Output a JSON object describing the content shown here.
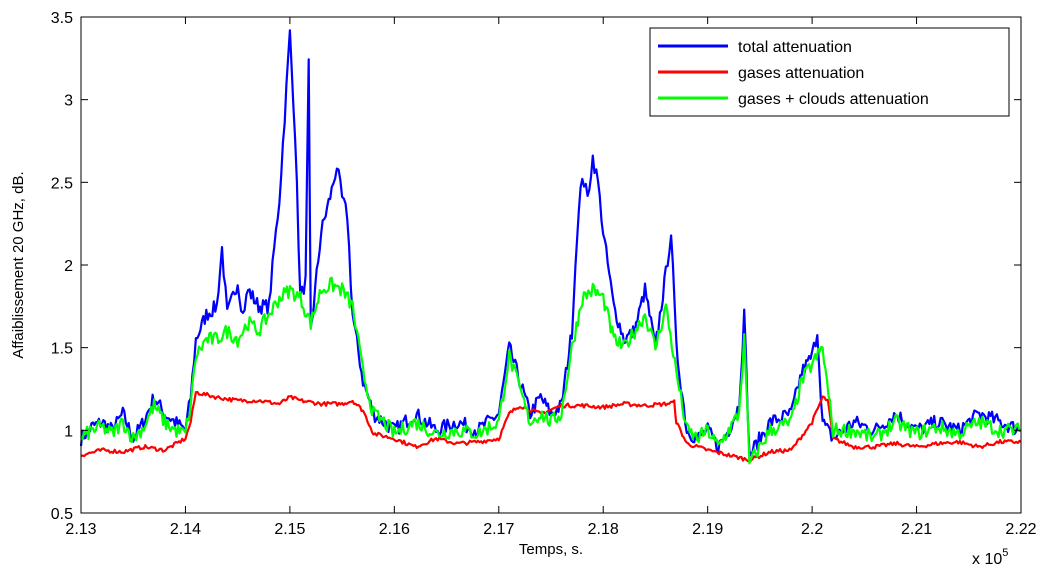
{
  "chart_data": {
    "type": "line",
    "title": "",
    "xlabel": "Temps, s.",
    "ylabel": "Affaiblissement 20 GHz, dB.",
    "x_exponent_label": "x 10",
    "x_exponent_power": "5",
    "xlim": [
      2.13,
      2.22
    ],
    "ylim": [
      0.5,
      3.5
    ],
    "xticks": [
      "2.13",
      "2.14",
      "2.15",
      "2.16",
      "2.17",
      "2.18",
      "2.19",
      "2.2",
      "2.21",
      "2.22"
    ],
    "yticks": [
      "0.5",
      "1",
      "1.5",
      "2",
      "2.5",
      "3",
      "3.5"
    ],
    "grid": false,
    "legend_position": "top-right",
    "series": [
      {
        "name": "total attenuation",
        "color": "#0000ff",
        "x": [
          2.13,
          2.131,
          2.132,
          2.133,
          2.134,
          2.135,
          2.136,
          2.137,
          2.138,
          2.139,
          2.14,
          2.1405,
          2.141,
          2.142,
          2.143,
          2.1435,
          2.144,
          2.145,
          2.1455,
          2.146,
          2.147,
          2.148,
          2.1485,
          2.149,
          2.1495,
          2.15,
          2.1505,
          2.151,
          2.1515,
          2.1518,
          2.152,
          2.153,
          2.154,
          2.1545,
          2.155,
          2.1555,
          2.156,
          2.157,
          2.158,
          2.159,
          2.16,
          2.162,
          2.164,
          2.166,
          2.168,
          2.17,
          2.171,
          2.172,
          2.173,
          2.174,
          2.175,
          2.176,
          2.177,
          2.1775,
          2.178,
          2.1785,
          2.179,
          2.1795,
          2.18,
          2.181,
          2.182,
          2.183,
          2.184,
          2.185,
          2.186,
          2.1865,
          2.187,
          2.188,
          2.189,
          2.19,
          2.191,
          2.192,
          2.193,
          2.1935,
          2.194,
          2.196,
          2.198,
          2.199,
          2.2,
          2.2005,
          2.201,
          2.202,
          2.204,
          2.206,
          2.208,
          2.21,
          2.212,
          2.214,
          2.216,
          2.218,
          2.22
        ],
        "y": [
          0.95,
          1.02,
          1.05,
          1.0,
          1.1,
          0.95,
          1.05,
          1.2,
          1.1,
          1.05,
          1.0,
          1.2,
          1.55,
          1.7,
          1.75,
          2.1,
          1.7,
          1.9,
          1.7,
          1.85,
          1.75,
          1.75,
          2.1,
          2.4,
          2.9,
          3.4,
          2.8,
          1.8,
          1.9,
          3.2,
          1.6,
          2.2,
          2.45,
          2.6,
          2.4,
          2.3,
          1.7,
          1.3,
          1.1,
          1.05,
          1.0,
          1.1,
          1.0,
          1.05,
          1.0,
          1.1,
          1.5,
          1.3,
          1.1,
          1.2,
          1.1,
          1.15,
          1.6,
          2.2,
          2.55,
          2.4,
          2.65,
          2.5,
          2.2,
          1.75,
          1.55,
          1.6,
          1.85,
          1.5,
          1.95,
          2.2,
          1.5,
          1.0,
          0.95,
          1.0,
          0.9,
          1.0,
          1.15,
          1.7,
          0.85,
          1.05,
          1.1,
          1.35,
          1.45,
          1.6,
          1.05,
          0.95,
          1.05,
          1.0,
          1.1,
          1.0,
          1.05,
          1.0,
          1.1,
          1.05,
          1.0
        ]
      },
      {
        "name": "gases attenuation",
        "color": "#ff0000",
        "x": [
          2.13,
          2.132,
          2.134,
          2.136,
          2.138,
          2.14,
          2.1405,
          2.141,
          2.143,
          2.145,
          2.147,
          2.149,
          2.15,
          2.151,
          2.153,
          2.155,
          2.156,
          2.157,
          2.158,
          2.16,
          2.162,
          2.164,
          2.166,
          2.168,
          2.17,
          2.171,
          2.172,
          2.174,
          2.176,
          2.178,
          2.18,
          2.182,
          2.184,
          2.186,
          2.1868,
          2.187,
          2.188,
          2.19,
          2.192,
          2.194,
          2.196,
          2.198,
          2.2,
          2.201,
          2.2015,
          2.202,
          2.204,
          2.206,
          2.208,
          2.21,
          2.212,
          2.214,
          2.216,
          2.218,
          2.22
        ],
        "y": [
          0.85,
          0.88,
          0.87,
          0.9,
          0.88,
          0.95,
          1.05,
          1.23,
          1.2,
          1.18,
          1.18,
          1.16,
          1.2,
          1.18,
          1.16,
          1.16,
          1.18,
          1.12,
          0.98,
          0.95,
          0.9,
          0.95,
          0.92,
          0.93,
          0.95,
          1.1,
          1.15,
          1.1,
          1.15,
          1.15,
          1.14,
          1.16,
          1.15,
          1.16,
          1.17,
          1.05,
          0.92,
          0.88,
          0.85,
          0.82,
          0.87,
          0.88,
          1.05,
          1.2,
          1.18,
          0.95,
          0.9,
          0.9,
          0.92,
          0.9,
          0.92,
          0.93,
          0.9,
          0.93,
          0.93
        ]
      },
      {
        "name": "gases + clouds attenuation",
        "color": "#00ff00",
        "x": [
          2.13,
          2.131,
          2.132,
          2.133,
          2.134,
          2.135,
          2.136,
          2.137,
          2.138,
          2.139,
          2.14,
          2.1405,
          2.141,
          2.142,
          2.143,
          2.144,
          2.145,
          2.146,
          2.147,
          2.148,
          2.149,
          2.15,
          2.151,
          2.152,
          2.153,
          2.154,
          2.155,
          2.156,
          2.157,
          2.158,
          2.159,
          2.16,
          2.162,
          2.164,
          2.166,
          2.168,
          2.17,
          2.171,
          2.172,
          2.173,
          2.174,
          2.175,
          2.176,
          2.177,
          2.178,
          2.179,
          2.18,
          2.181,
          2.182,
          2.183,
          2.184,
          2.185,
          2.186,
          2.187,
          2.188,
          2.189,
          2.19,
          2.191,
          2.192,
          2.193,
          2.1935,
          2.194,
          2.196,
          2.198,
          2.199,
          2.2,
          2.201,
          2.202,
          2.204,
          2.206,
          2.208,
          2.21,
          2.212,
          2.214,
          2.216,
          2.218,
          2.22
        ],
        "y": [
          0.95,
          1.0,
          1.02,
          0.98,
          1.05,
          0.95,
          1.02,
          1.15,
          1.05,
          1.0,
          0.98,
          1.15,
          1.45,
          1.55,
          1.55,
          1.6,
          1.55,
          1.65,
          1.6,
          1.7,
          1.8,
          1.85,
          1.8,
          1.65,
          1.85,
          1.88,
          1.85,
          1.75,
          1.35,
          1.1,
          1.05,
          0.98,
          1.05,
          0.98,
          1.0,
          0.98,
          1.05,
          1.45,
          1.25,
          1.05,
          1.1,
          1.05,
          1.1,
          1.5,
          1.8,
          1.85,
          1.8,
          1.55,
          1.5,
          1.6,
          1.7,
          1.5,
          1.75,
          1.35,
          1.0,
          0.95,
          1.0,
          0.9,
          1.0,
          1.1,
          1.55,
          0.8,
          1.0,
          1.05,
          1.3,
          1.4,
          1.5,
          1.0,
          1.0,
          0.95,
          1.05,
          0.98,
          1.02,
          0.98,
          1.05,
          1.0,
          1.0
        ]
      }
    ]
  }
}
